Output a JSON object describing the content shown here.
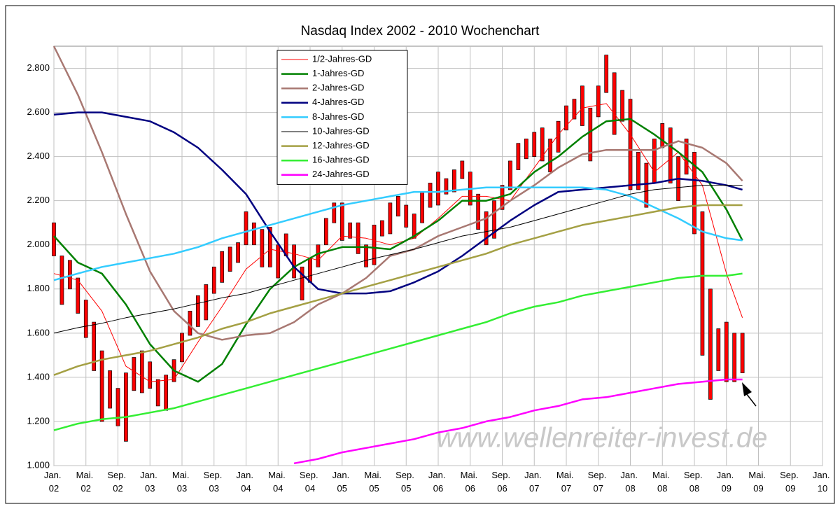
{
  "chart_data": {
    "type": "line",
    "title": "Nasdaq Index 2002 - 2010 Wochenchart",
    "annotation": "www.wellenreiter-invest.de",
    "ylim": [
      1000,
      2900
    ],
    "yticks": [
      {
        "value": 1000,
        "label": "1.000"
      },
      {
        "value": 1200,
        "label": "1.200"
      },
      {
        "value": 1400,
        "label": "1.400"
      },
      {
        "value": 1600,
        "label": "1.600"
      },
      {
        "value": 1800,
        "label": "1.800"
      },
      {
        "value": 2000,
        "label": "2.000"
      },
      {
        "value": 2200,
        "label": "2.200"
      },
      {
        "value": 2400,
        "label": "2.400"
      },
      {
        "value": 2600,
        "label": "2.600"
      },
      {
        "value": 2800,
        "label": "2.800"
      }
    ],
    "xlim": [
      0,
      96
    ],
    "xticks": [
      {
        "value": 0,
        "label": "Jan. 02"
      },
      {
        "value": 4,
        "label": "Mai. 02"
      },
      {
        "value": 8,
        "label": "Sep. 02"
      },
      {
        "value": 12,
        "label": "Jan. 03"
      },
      {
        "value": 16,
        "label": "Mai. 03"
      },
      {
        "value": 20,
        "label": "Sep. 03"
      },
      {
        "value": 24,
        "label": "Jan. 04"
      },
      {
        "value": 28,
        "label": "Mai. 04"
      },
      {
        "value": 32,
        "label": "Sep. 04"
      },
      {
        "value": 36,
        "label": "Jan. 05"
      },
      {
        "value": 40,
        "label": "Mai. 05"
      },
      {
        "value": 44,
        "label": "Sep. 05"
      },
      {
        "value": 48,
        "label": "Jan. 06"
      },
      {
        "value": 52,
        "label": "Mai. 06"
      },
      {
        "value": 56,
        "label": "Sep. 06"
      },
      {
        "value": 60,
        "label": "Jan. 07"
      },
      {
        "value": 64,
        "label": "Mai. 07"
      },
      {
        "value": 68,
        "label": "Sep. 07"
      },
      {
        "value": 72,
        "label": "Jan. 08"
      },
      {
        "value": 76,
        "label": "Mai. 08"
      },
      {
        "value": 80,
        "label": "Sep. 08"
      },
      {
        "value": 84,
        "label": "Jan. 09"
      },
      {
        "value": 88,
        "label": "Mai. 09"
      },
      {
        "value": 92,
        "label": "Sep. 09"
      },
      {
        "value": 96,
        "label": "Jan. 10"
      }
    ],
    "grid": true,
    "legend": "top-center",
    "candles": {
      "color": "#ff0000",
      "x": [
        0,
        1,
        2,
        3,
        4,
        5,
        6,
        7,
        8,
        9,
        10,
        11,
        12,
        13,
        14,
        15,
        16,
        17,
        18,
        19,
        20,
        21,
        22,
        23,
        24,
        25,
        26,
        27,
        28,
        29,
        30,
        31,
        32,
        33,
        34,
        35,
        36,
        37,
        38,
        39,
        40,
        41,
        42,
        43,
        44,
        45,
        46,
        47,
        48,
        49,
        50,
        51,
        52,
        53,
        54,
        55,
        56,
        57,
        58,
        59,
        60,
        61,
        62,
        63,
        64,
        65,
        66,
        67,
        68,
        69,
        70,
        71,
        72,
        73,
        74,
        75,
        76,
        77,
        78,
        79,
        80,
        81,
        82,
        83,
        84,
        85,
        86
      ],
      "high": [
        2100,
        1950,
        1930,
        1850,
        1750,
        1650,
        1520,
        1430,
        1350,
        1420,
        1490,
        1520,
        1470,
        1390,
        1410,
        1480,
        1600,
        1700,
        1770,
        1820,
        1900,
        1970,
        1990,
        2010,
        2150,
        2100,
        2070,
        2080,
        2000,
        2050,
        2000,
        1900,
        1940,
        2000,
        2120,
        2190,
        2190,
        2100,
        2100,
        2000,
        2090,
        2110,
        2190,
        2220,
        2180,
        2140,
        2240,
        2280,
        2330,
        2300,
        2340,
        2380,
        2330,
        2230,
        2150,
        2200,
        2270,
        2380,
        2460,
        2480,
        2510,
        2530,
        2480,
        2560,
        2630,
        2660,
        2720,
        2620,
        2720,
        2860,
        2780,
        2700,
        2660,
        2420,
        2370,
        2480,
        2550,
        2530,
        2400,
        2480,
        2420,
        2150,
        1800,
        1620,
        1650,
        1600,
        1600
      ],
      "low": [
        1950,
        1730,
        1800,
        1690,
        1580,
        1430,
        1200,
        1260,
        1180,
        1110,
        1340,
        1330,
        1350,
        1270,
        1250,
        1380,
        1470,
        1590,
        1630,
        1660,
        1780,
        1830,
        1880,
        1920,
        2000,
        2000,
        1900,
        1900,
        1850,
        1950,
        1850,
        1750,
        1830,
        1900,
        2000,
        2100,
        2020,
        2030,
        1960,
        1900,
        1910,
        2040,
        2050,
        2130,
        2080,
        2030,
        2100,
        2170,
        2180,
        2230,
        2240,
        2300,
        2180,
        2070,
        2000,
        2030,
        2160,
        2250,
        2340,
        2390,
        2400,
        2380,
        2330,
        2420,
        2520,
        2570,
        2540,
        2380,
        2580,
        2690,
        2500,
        2560,
        2250,
        2250,
        2170,
        2280,
        2440,
        2280,
        2200,
        2320,
        2050,
        1500,
        1300,
        1430,
        1380,
        1380,
        1420
      ]
    },
    "x": [
      0,
      3,
      6,
      9,
      12,
      15,
      18,
      21,
      24,
      27,
      30,
      33,
      36,
      39,
      42,
      45,
      48,
      51,
      54,
      57,
      60,
      63,
      66,
      69,
      72,
      75,
      78,
      81,
      84,
      86
    ],
    "series": [
      {
        "name": "1/2-Jahres-GD",
        "color": "#ff0000",
        "width": 1,
        "values": [
          1870,
          1840,
          1700,
          1450,
          1380,
          1390,
          1560,
          1720,
          1890,
          1980,
          1960,
          1930,
          2040,
          2030,
          2000,
          2030,
          2120,
          2220,
          2220,
          2200,
          2350,
          2500,
          2620,
          2640,
          2500,
          2330,
          2420,
          2270,
          1870,
          1670
        ]
      },
      {
        "name": "1-Jahres-GD",
        "color": "#008000",
        "width": 2.5,
        "values": [
          2040,
          1920,
          1870,
          1730,
          1550,
          1430,
          1380,
          1460,
          1640,
          1800,
          1900,
          1960,
          1990,
          1990,
          1980,
          2040,
          2110,
          2200,
          2200,
          2230,
          2330,
          2400,
          2490,
          2560,
          2570,
          2500,
          2420,
          2330,
          2160,
          2020
        ]
      },
      {
        "name": "2-Jahres-GD",
        "color": "#a87872",
        "width": 2.5,
        "values": [
          2900,
          2680,
          2420,
          2140,
          1880,
          1700,
          1600,
          1570,
          1590,
          1600,
          1650,
          1730,
          1780,
          1850,
          1950,
          1980,
          2040,
          2080,
          2120,
          2200,
          2270,
          2350,
          2410,
          2430,
          2430,
          2430,
          2470,
          2440,
          2370,
          2290
        ]
      },
      {
        "name": "4-Jahres-GD",
        "color": "#000080",
        "width": 2.5,
        "values": [
          2590,
          2600,
          2600,
          2580,
          2560,
          2510,
          2440,
          2340,
          2230,
          2060,
          1900,
          1800,
          1780,
          1780,
          1790,
          1830,
          1880,
          1950,
          2030,
          2110,
          2180,
          2240,
          2250,
          2260,
          2270,
          2280,
          2300,
          2290,
          2270,
          2250
        ]
      },
      {
        "name": "8-Jahres-GD",
        "color": "#33ccff",
        "width": 2.5,
        "values": [
          1840,
          1870,
          1900,
          1920,
          1940,
          1960,
          1990,
          2030,
          2060,
          2090,
          2120,
          2150,
          2180,
          2200,
          2220,
          2240,
          2240,
          2250,
          2260,
          2260,
          2260,
          2260,
          2260,
          2250,
          2220,
          2170,
          2120,
          2060,
          2030,
          2020
        ]
      },
      {
        "name": "10-Jahres-GD",
        "color": "#000000",
        "width": 1,
        "values": [
          1600,
          1625,
          1645,
          1670,
          1690,
          1710,
          1735,
          1760,
          1780,
          1810,
          1840,
          1870,
          1900,
          1930,
          1955,
          1980,
          2010,
          2040,
          2060,
          2080,
          2110,
          2140,
          2170,
          2200,
          2230,
          2250,
          2260,
          2270,
          2270,
          2270
        ]
      },
      {
        "name": "12-Jahres-GD",
        "color": "#a4a044",
        "width": 2.5,
        "values": [
          1410,
          1450,
          1480,
          1500,
          1520,
          1550,
          1580,
          1620,
          1650,
          1690,
          1720,
          1750,
          1780,
          1810,
          1840,
          1870,
          1900,
          1930,
          1960,
          2000,
          2030,
          2060,
          2090,
          2110,
          2130,
          2150,
          2170,
          2180,
          2180,
          2180
        ]
      },
      {
        "name": "16-Jahres-GD",
        "color": "#33ee33",
        "width": 2.5,
        "values": [
          1160,
          1190,
          1210,
          1220,
          1240,
          1260,
          1290,
          1320,
          1350,
          1380,
          1410,
          1440,
          1470,
          1500,
          1530,
          1560,
          1590,
          1620,
          1650,
          1690,
          1720,
          1740,
          1770,
          1790,
          1810,
          1830,
          1850,
          1860,
          1860,
          1870
        ]
      },
      {
        "name": "24-Jahres-GD",
        "color": "#ff00ff",
        "width": 2.5,
        "values": [
          null,
          null,
          null,
          null,
          null,
          null,
          null,
          null,
          null,
          null,
          1010,
          1030,
          1060,
          1080,
          1100,
          1120,
          1150,
          1170,
          1200,
          1220,
          1250,
          1270,
          1300,
          1310,
          1330,
          1350,
          1370,
          1380,
          1390,
          1390
        ]
      }
    ]
  }
}
